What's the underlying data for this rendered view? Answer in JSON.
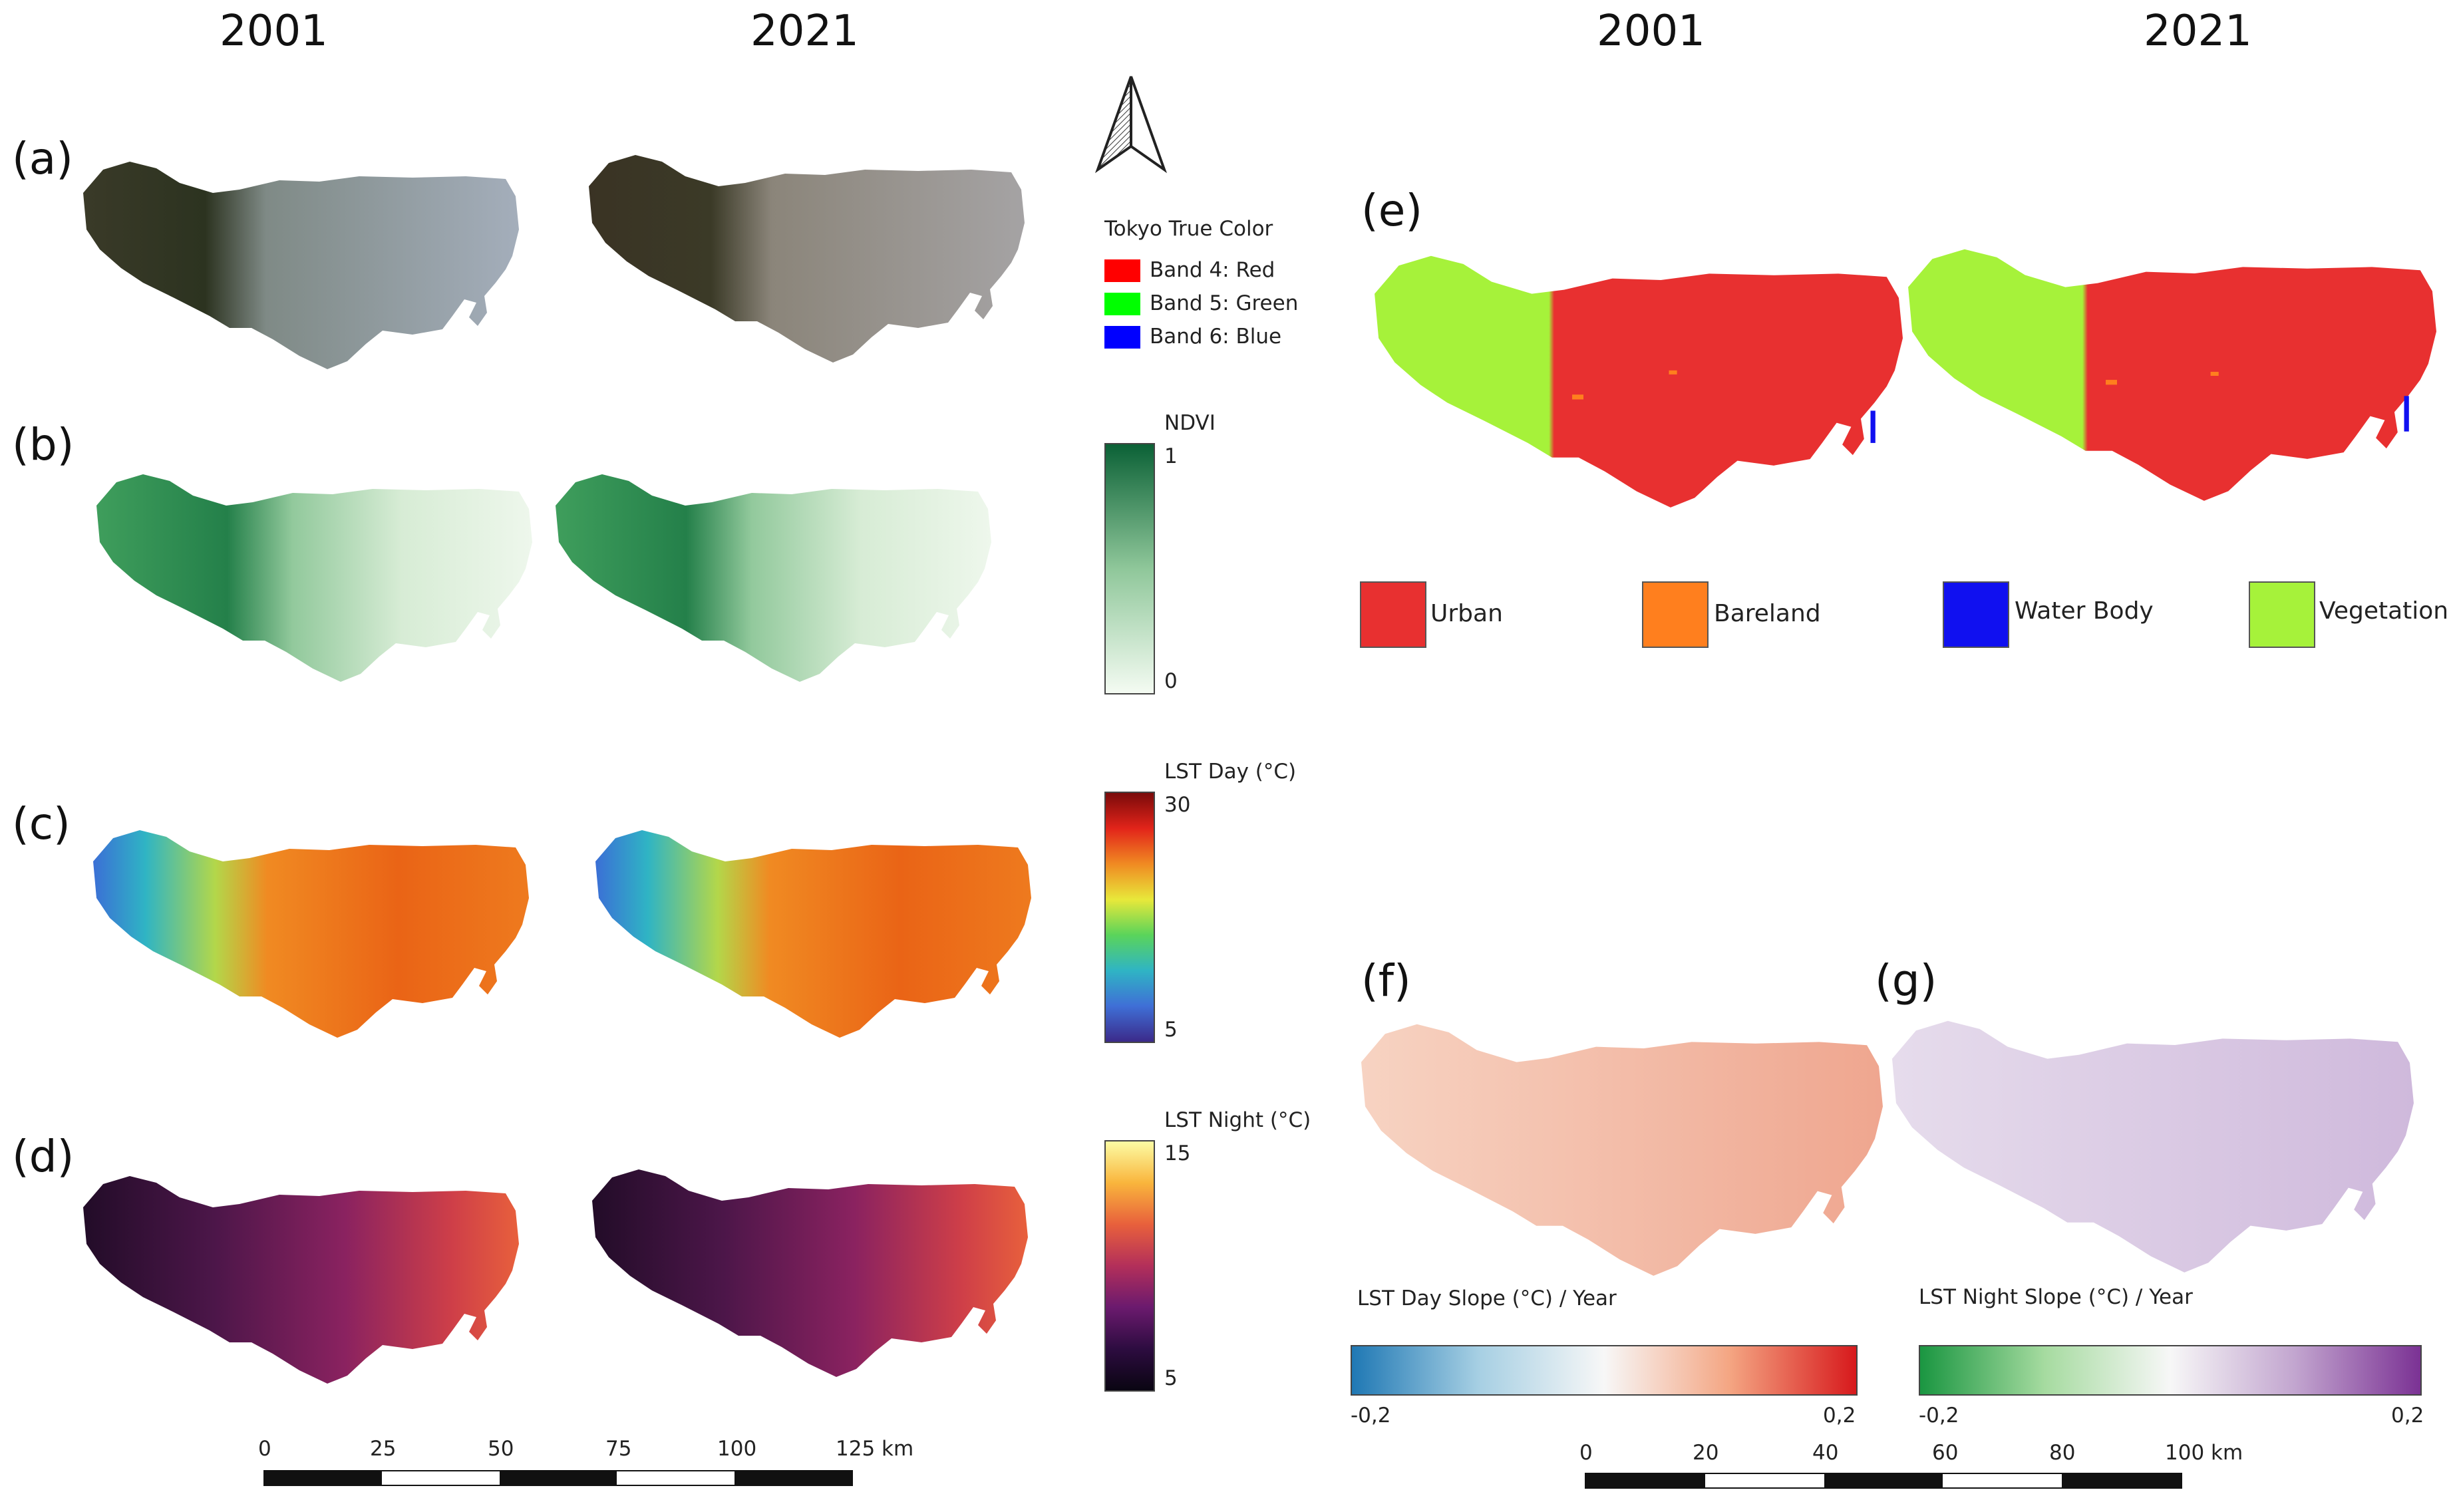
{
  "left_panel": {
    "years": [
      "2001",
      "2021"
    ],
    "row_labels": [
      "(a)",
      "(b)",
      "(c)",
      "(d)"
    ]
  },
  "right_panel": {
    "years": [
      "2001",
      "2021"
    ],
    "label_e": "(e)",
    "label_f": "(f)",
    "label_g": "(g)"
  },
  "legend_true_color": {
    "title": "Tokyo True Color",
    "items": [
      {
        "label": "Band 4: Red",
        "color": "#ff0000"
      },
      {
        "label": "Band 5: Green",
        "color": "#00ff00"
      },
      {
        "label": "Band 6: Blue",
        "color": "#0000ff"
      }
    ]
  },
  "legend_ndvi": {
    "title": "NDVI",
    "max": "1",
    "min": "0"
  },
  "legend_lst_day": {
    "title": "LST Day (°C)",
    "max": "30",
    "min": "5"
  },
  "legend_lst_night": {
    "title": "LST Night (°C)",
    "max": "15",
    "min": "5"
  },
  "landcover_legend": [
    {
      "label": "Urban",
      "color": "#e83030"
    },
    {
      "label": "Bareland",
      "color": "#ff7f1e"
    },
    {
      "label": "Water Body",
      "color": "#1010f0"
    },
    {
      "label": "Vegetation",
      "color": "#a6f23a"
    }
  ],
  "slope_day_legend": {
    "title": "LST Day Slope (°C) / Year",
    "min": "-0,2",
    "max": "0,2"
  },
  "slope_night_legend": {
    "title": "LST Night Slope (°C) / Year",
    "min": "-0,2",
    "max": "0,2"
  },
  "scalebar_left": {
    "ticks": [
      "0",
      "25",
      "50",
      "75",
      "100",
      "125 km"
    ]
  },
  "scalebar_right": {
    "ticks": [
      "0",
      "20",
      "40",
      "60",
      "80",
      "100 km"
    ]
  },
  "colors": {
    "ndvi_low": "#f4fbf2",
    "ndvi_high": "#0b6136",
    "night_low": "#1a0a20",
    "night_high": "#fcfca4",
    "slope_day_low": "#1f78b4",
    "slope_day_high": "#d7191c",
    "slope_night_low": "#1a9641",
    "slope_night_high": "#7b3294"
  }
}
